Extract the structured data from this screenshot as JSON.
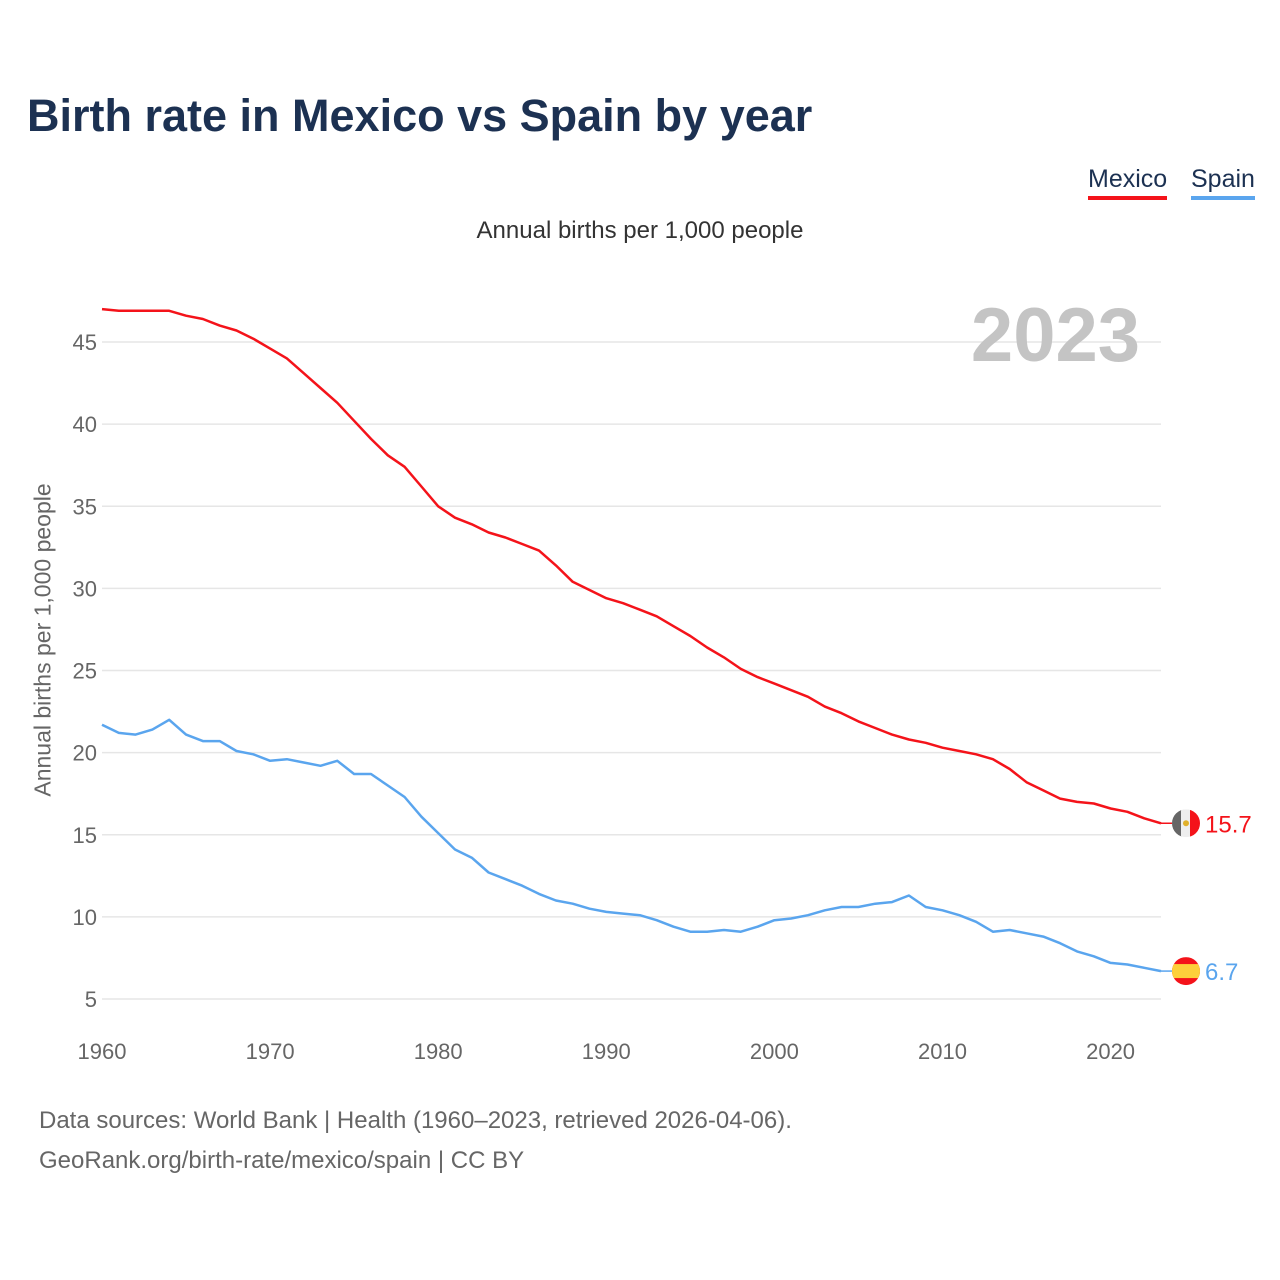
{
  "title": "Birth rate in Mexico vs Spain by year",
  "legend": {
    "mexico": "Mexico",
    "spain": "Spain"
  },
  "subtitle": "Annual births per 1,000 people",
  "year_badge": "2023",
  "source_line1": "Data sources: World Bank | Health (1960–2023, retrieved 2026-04-06).",
  "source_line2": "GeoRank.org/birth-rate/mexico/spain | CC BY",
  "colors": {
    "mexico": "#f4131a",
    "spain": "#5aa5ee"
  },
  "chart_data": {
    "type": "line",
    "title": "Birth rate in Mexico vs Spain by year",
    "xlabel": "",
    "ylabel": "Annual births per 1,000 people",
    "xlim": [
      1960,
      2023
    ],
    "ylim": [
      5,
      47
    ],
    "xticks": [
      1960,
      1970,
      1980,
      1990,
      2000,
      2010,
      2020
    ],
    "yticks": [
      5,
      10,
      15,
      20,
      25,
      30,
      35,
      40,
      45
    ],
    "grid": true,
    "legend_position": "top-right",
    "x": [
      1960,
      1961,
      1962,
      1963,
      1964,
      1965,
      1966,
      1967,
      1968,
      1969,
      1970,
      1971,
      1972,
      1973,
      1974,
      1975,
      1976,
      1977,
      1978,
      1979,
      1980,
      1981,
      1982,
      1983,
      1984,
      1985,
      1986,
      1987,
      1988,
      1989,
      1990,
      1991,
      1992,
      1993,
      1994,
      1995,
      1996,
      1997,
      1998,
      1999,
      2000,
      2001,
      2002,
      2003,
      2004,
      2005,
      2006,
      2007,
      2008,
      2009,
      2010,
      2011,
      2012,
      2013,
      2014,
      2015,
      2016,
      2017,
      2018,
      2019,
      2020,
      2021,
      2022,
      2023
    ],
    "series": [
      {
        "name": "Mexico",
        "end_label": "15.7",
        "values": [
          47.0,
          46.9,
          46.9,
          46.9,
          46.9,
          46.6,
          46.4,
          46.0,
          45.7,
          45.2,
          44.6,
          44.0,
          43.1,
          42.2,
          41.3,
          40.2,
          39.1,
          38.1,
          37.4,
          36.2,
          35.0,
          34.3,
          33.9,
          33.4,
          33.1,
          32.7,
          32.3,
          31.4,
          30.4,
          29.9,
          29.4,
          29.1,
          28.7,
          28.3,
          27.7,
          27.1,
          26.4,
          25.8,
          25.1,
          24.6,
          24.2,
          23.8,
          23.4,
          22.8,
          22.4,
          21.9,
          21.5,
          21.1,
          20.8,
          20.6,
          20.3,
          20.1,
          19.9,
          19.6,
          19.0,
          18.2,
          17.7,
          17.2,
          17.0,
          16.9,
          16.6,
          16.4,
          16.0,
          15.7
        ]
      },
      {
        "name": "Spain",
        "end_label": "6.7",
        "values": [
          21.7,
          21.2,
          21.1,
          21.4,
          22.0,
          21.1,
          20.7,
          20.7,
          20.1,
          19.9,
          19.5,
          19.6,
          19.4,
          19.2,
          19.5,
          18.7,
          18.7,
          18.0,
          17.3,
          16.1,
          15.1,
          14.1,
          13.6,
          12.7,
          12.3,
          11.9,
          11.4,
          11.0,
          10.8,
          10.5,
          10.3,
          10.2,
          10.1,
          9.8,
          9.4,
          9.1,
          9.1,
          9.2,
          9.1,
          9.4,
          9.8,
          9.9,
          10.1,
          10.4,
          10.6,
          10.6,
          10.8,
          10.9,
          11.3,
          10.6,
          10.4,
          10.1,
          9.7,
          9.1,
          9.2,
          9.0,
          8.8,
          8.4,
          7.9,
          7.6,
          7.2,
          7.1,
          6.9,
          6.7
        ]
      }
    ]
  }
}
